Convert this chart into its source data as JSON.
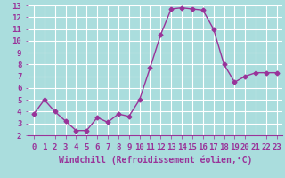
{
  "x": [
    0,
    1,
    2,
    3,
    4,
    5,
    6,
    7,
    8,
    9,
    10,
    11,
    12,
    13,
    14,
    15,
    16,
    17,
    18,
    19,
    20,
    21,
    22,
    23
  ],
  "y": [
    3.8,
    5.0,
    4.0,
    3.2,
    2.4,
    2.4,
    3.5,
    3.1,
    3.8,
    3.6,
    5.0,
    7.7,
    10.5,
    12.7,
    12.8,
    12.7,
    12.6,
    11.0,
    8.0,
    6.5,
    7.0,
    7.3,
    7.3,
    7.3
  ],
  "xlabel": "Windchill (Refroidissement éolien,°C)",
  "ylim": [
    2,
    13
  ],
  "yticks": [
    2,
    3,
    4,
    5,
    6,
    7,
    8,
    9,
    10,
    11,
    12,
    13
  ],
  "xticks": [
    0,
    1,
    2,
    3,
    4,
    5,
    6,
    7,
    8,
    9,
    10,
    11,
    12,
    13,
    14,
    15,
    16,
    17,
    18,
    19,
    20,
    21,
    22,
    23
  ],
  "line_color": "#993399",
  "marker": "D",
  "marker_size": 2.5,
  "bg_color": "#aadddd",
  "grid_color": "#ffffff",
  "xlabel_fontsize": 7,
  "tick_fontsize": 6.5,
  "line_width": 1.0,
  "xlim": [
    -0.5,
    23.5
  ]
}
